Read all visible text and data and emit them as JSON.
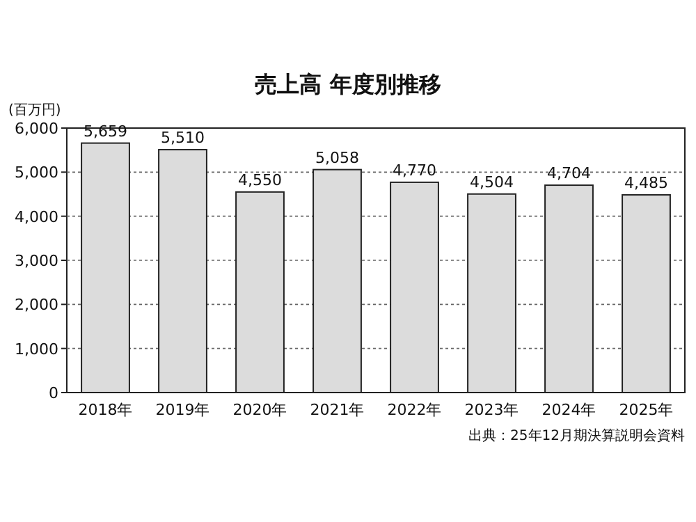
{
  "chart_data": {
    "type": "bar",
    "title": "売上高 年度別推移",
    "ylabel": "(百万円)",
    "categories": [
      "2018年",
      "2019年",
      "2020年",
      "2021年",
      "2022年",
      "2023年",
      "2024年",
      "2025年"
    ],
    "values": [
      5659,
      5510,
      4550,
      5058,
      4770,
      4504,
      4704,
      4485
    ],
    "value_labels": [
      "5,659",
      "5,510",
      "4,550",
      "5,058",
      "4,770",
      "4,504",
      "4,704",
      "4,485"
    ],
    "color": "#dcdcdc",
    "ylim": [
      0,
      6000
    ],
    "yticks": [
      0,
      {
        "value": 1000,
        "label": "1,000"
      },
      {
        "value": 2000,
        "label": "2,000"
      },
      {
        "value": 3000,
        "label": "3,000"
      },
      {
        "value": 4000,
        "label": "4,000"
      },
      {
        "value": 5000,
        "label": "5,000"
      },
      {
        "value": 6000,
        "label": "6,000"
      }
    ],
    "grid": "y",
    "annotations": [
      "出典：25年12月期決算説明会資料"
    ]
  }
}
